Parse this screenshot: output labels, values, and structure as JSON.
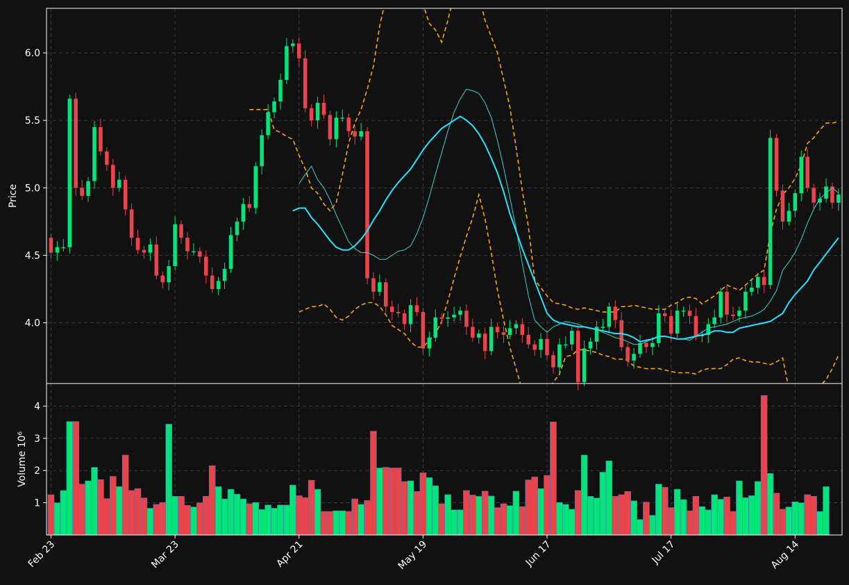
{
  "colors": {
    "background": "#111111",
    "up": "#00e47c",
    "down": "#e9434b",
    "grid": "#444444",
    "sma_short": "#33d6c8",
    "sma_long": "#22e4ff",
    "band": "#ffa500",
    "axis": "#ffffff"
  },
  "chart_data": [
    {
      "type": "candlestick",
      "title": "",
      "ylabel": "Price",
      "ylim": [
        3.55,
        6.33
      ],
      "yticks": [
        4.0,
        4.5,
        5.0,
        5.5,
        6.0
      ],
      "ytick_labels": [
        "4.0",
        "4.5",
        "5.0",
        "5.5",
        "6.0"
      ],
      "grid": true,
      "xtick_labels": [
        "Feb 23",
        "Mar 23",
        "Apr 21",
        "May 19",
        "Jun 17",
        "Jul 17",
        "Aug 14"
      ],
      "xtick_index": [
        0,
        20,
        40,
        60,
        80,
        100,
        120
      ],
      "close": [
        4.52,
        4.56,
        4.56,
        5.66,
        5.0,
        4.94,
        5.05,
        5.45,
        5.27,
        5.17,
        5.0,
        5.06,
        4.84,
        4.63,
        4.54,
        4.52,
        4.58,
        4.35,
        4.3,
        4.42,
        4.73,
        4.63,
        4.53,
        4.53,
        4.49,
        4.35,
        4.25,
        4.31,
        4.4,
        4.65,
        4.75,
        4.88,
        4.85,
        5.16,
        5.39,
        5.56,
        5.64,
        5.8,
        6.05,
        6.07,
        5.96,
        5.59,
        5.5,
        5.63,
        5.54,
        5.36,
        5.52,
        5.52,
        5.42,
        5.38,
        5.42,
        4.33,
        4.23,
        4.3,
        4.12,
        4.08,
        4.07,
        3.99,
        4.13,
        4.08,
        3.81,
        3.89,
        4.04,
        4.03,
        4.04,
        4.06,
        4.09,
        3.97,
        3.89,
        3.92,
        3.79,
        3.97,
        3.93,
        3.91,
        3.96,
        3.99,
        3.91,
        3.84,
        3.8,
        3.88,
        3.76,
        3.67,
        3.84,
        3.84,
        3.94,
        3.56,
        3.81,
        3.86,
        3.97,
        3.97,
        4.12,
        4.02,
        3.82,
        3.72,
        3.77,
        3.85,
        3.82,
        3.85,
        4.07,
        4.05,
        3.92,
        4.09,
        4.09,
        4.05,
        3.9,
        3.91,
        3.99,
        4.04,
        4.23,
        4.06,
        4.05,
        4.09,
        4.23,
        4.26,
        4.34,
        4.28,
        5.37,
        4.98,
        4.75,
        4.83,
        4.96,
        5.23,
        5.0,
        4.89,
        4.92,
        5.01,
        4.89,
        4.95
      ],
      "sma_short": [
        null,
        null,
        null,
        null,
        null,
        null,
        null,
        null,
        null,
        5.03,
        5.1,
        5.16,
        5.06,
        5.0,
        4.91,
        4.8,
        4.7,
        4.6,
        4.55,
        4.52,
        4.52,
        4.5,
        4.47,
        4.47,
        4.5,
        4.53,
        4.54,
        4.57,
        4.66,
        4.78,
        4.93,
        5.1,
        5.26,
        5.42,
        5.56,
        5.66,
        5.73,
        5.72,
        5.7,
        5.63,
        5.52,
        5.35,
        5.15,
        4.93,
        4.7,
        4.44,
        4.2,
        4.02,
        3.97,
        3.93,
        3.97,
        3.99,
        4.01,
        4.0,
        3.99,
        3.97,
        3.96,
        3.95,
        3.93,
        3.91,
        3.89,
        3.88,
        3.86,
        3.84,
        3.84,
        3.86,
        3.88,
        3.9,
        3.9,
        3.89,
        3.88,
        3.88,
        3.87,
        3.9,
        3.93,
        3.96,
        3.97,
        3.98,
        3.99,
        4.01,
        4.03,
        4.04,
        4.05,
        4.07,
        4.1,
        4.16,
        4.24,
        4.39,
        4.45,
        4.52,
        4.62,
        4.74,
        4.84,
        4.92,
        4.96,
        5.0,
        4.96
      ],
      "sma_long": [
        4.83,
        4.85,
        4.85,
        4.78,
        4.73,
        4.67,
        4.61,
        4.56,
        4.54,
        4.54,
        4.57,
        4.62,
        4.68,
        4.76,
        4.83,
        4.91,
        4.98,
        5.04,
        5.09,
        5.14,
        5.21,
        5.28,
        5.34,
        5.39,
        5.44,
        5.47,
        5.5,
        5.53,
        5.5,
        5.46,
        5.4,
        5.32,
        5.22,
        5.11,
        4.97,
        4.81,
        4.68,
        4.55,
        4.43,
        4.31,
        4.19,
        4.07,
        4.02,
        4.0,
        3.99,
        3.98,
        3.97,
        3.97,
        3.96,
        3.95,
        3.94,
        3.93,
        3.92,
        3.92,
        3.91,
        3.89,
        3.86,
        3.87,
        3.88,
        3.9,
        3.9,
        3.89,
        3.88,
        3.88,
        3.89,
        3.9,
        3.91,
        3.92,
        3.94,
        3.94,
        3.93,
        3.93,
        3.96,
        3.97,
        3.98,
        3.99,
        4.0,
        4.01,
        4.04,
        4.07,
        4.15,
        4.21,
        4.26,
        4.31,
        4.39,
        4.45,
        4.51,
        4.57,
        4.63
      ],
      "band_upper": [
        5.58,
        5.58,
        5.58,
        5.58,
        5.43,
        5.41,
        5.38,
        5.36,
        5.24,
        5.14,
        5.0,
        4.96,
        4.88,
        4.83,
        4.89,
        5.1,
        5.33,
        5.48,
        5.58,
        5.73,
        5.9,
        6.2,
        6.4,
        6.48,
        6.55,
        6.68,
        6.62,
        6.51,
        6.36,
        6.22,
        6.17,
        6.08,
        6.24,
        6.43,
        6.77,
        6.86,
        6.68,
        6.43,
        6.24,
        6.12,
        6.0,
        5.8,
        5.6,
        5.3,
        4.98,
        4.71,
        4.32,
        4.26,
        4.2,
        4.15,
        4.14,
        4.13,
        4.11,
        4.1,
        4.11,
        4.1,
        4.09,
        4.08,
        4.08,
        4.08,
        4.12,
        4.12,
        4.13,
        4.12,
        4.11,
        4.1,
        4.1,
        4.1,
        4.13,
        4.15,
        4.18,
        4.19,
        4.18,
        4.14,
        4.17,
        4.2,
        4.24,
        4.28,
        4.26,
        4.24,
        4.28,
        4.32,
        4.36,
        4.39,
        4.66,
        4.84,
        4.95,
        5.0,
        5.07,
        5.17,
        5.33,
        5.37,
        5.43,
        5.48,
        5.48,
        5.49
      ],
      "band_lower": [
        4.08,
        4.1,
        4.12,
        4.12,
        4.14,
        4.1,
        4.04,
        4.02,
        4.05,
        4.1,
        4.13,
        4.15,
        4.15,
        4.12,
        4.06,
        3.98,
        3.95,
        3.92,
        3.86,
        3.82,
        3.82,
        3.87,
        3.92,
        4.01,
        4.16,
        4.33,
        4.49,
        4.64,
        4.78,
        4.95,
        4.77,
        4.52,
        4.24,
        4.02,
        3.82,
        3.66,
        3.5,
        3.42,
        3.38,
        3.42,
        3.48,
        3.56,
        3.62,
        3.75,
        3.76,
        3.8,
        3.8,
        3.79,
        3.78,
        3.76,
        3.75,
        3.73,
        3.73,
        3.72,
        3.68,
        3.67,
        3.66,
        3.66,
        3.66,
        3.65,
        3.64,
        3.63,
        3.63,
        3.63,
        3.62,
        3.65,
        3.66,
        3.66,
        3.66,
        3.69,
        3.73,
        3.74,
        3.72,
        3.71,
        3.71,
        3.7,
        3.69,
        3.71,
        3.74,
        3.51,
        3.49,
        3.48,
        3.48,
        3.5,
        3.53,
        3.58,
        3.66,
        3.76
      ],
      "candles_start_open": 4.63
    },
    {
      "type": "bar",
      "ylabel": "Volume  10⁶",
      "ylim": [
        0.0,
        4.7
      ],
      "yticks": [
        1,
        2,
        3,
        4
      ],
      "ytick_labels": [
        "1",
        "2",
        "3",
        "4"
      ],
      "grid": true,
      "values": [
        1.25,
        1.0,
        1.38,
        3.52,
        3.52,
        1.58,
        1.68,
        2.1,
        1.72,
        1.13,
        1.82,
        1.5,
        2.48,
        1.38,
        1.44,
        1.15,
        0.83,
        0.95,
        1.01,
        3.44,
        1.2,
        1.2,
        0.92,
        0.87,
        1.0,
        1.2,
        2.15,
        1.5,
        1.12,
        1.42,
        1.27,
        1.12,
        0.97,
        1.01,
        0.79,
        0.93,
        0.83,
        0.93,
        0.93,
        1.55,
        1.22,
        1.16,
        1.7,
        1.42,
        0.73,
        0.73,
        0.75,
        0.75,
        0.73,
        1.12,
        0.95,
        1.07,
        3.22,
        2.08,
        2.1,
        2.08,
        2.08,
        1.66,
        1.68,
        1.35,
        1.93,
        1.78,
        1.53,
        0.97,
        1.25,
        0.78,
        0.78,
        1.38,
        1.24,
        1.2,
        1.36,
        1.21,
        0.85,
        0.97,
        0.91,
        1.36,
        0.88,
        1.71,
        1.8,
        1.44,
        1.85,
        3.51,
        1.01,
        0.95,
        0.8,
        1.38,
        2.48,
        1.2,
        1.15,
        1.95,
        2.3,
        1.2,
        1.25,
        1.35,
        1.06,
        0.48,
        1.02,
        0.61,
        1.58,
        1.48,
        0.85,
        1.42,
        1.1,
        0.75,
        1.2,
        0.88,
        0.78,
        1.25,
        1.11,
        1.18,
        0.73,
        1.68,
        1.16,
        1.22,
        1.66,
        4.33,
        1.91,
        1.3,
        0.8,
        0.87,
        1.03,
        1.0,
        1.25,
        1.2,
        0.73,
        1.5
      ]
    }
  ]
}
